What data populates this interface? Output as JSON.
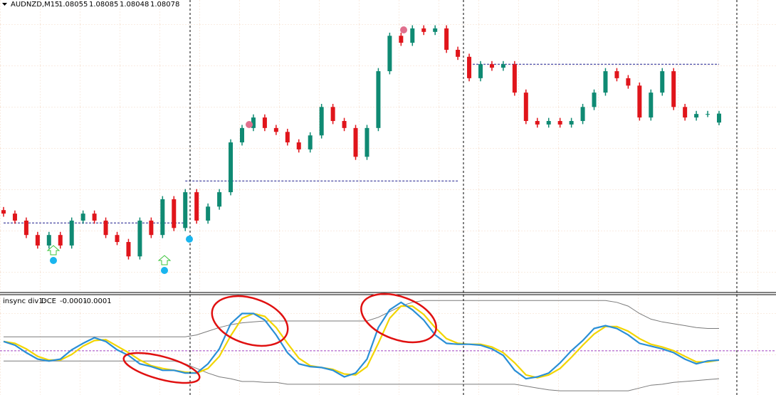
{
  "chart_data": [
    {
      "type": "candlestick",
      "title": "AUDNZD,M15",
      "open": [
        1.0783,
        1.07821,
        1.07803,
        1.07766,
        1.07739,
        1.07766,
        1.07739,
        1.07803,
        1.07821,
        1.07803,
        1.07766,
        1.07748,
        1.07711,
        1.07803,
        1.07766,
        1.07858,
        1.07784,
        1.07876,
        1.07803,
        1.07839,
        1.07876,
        1.08004,
        1.08041,
        1.08068,
        1.08041,
        1.08031,
        1.08004,
        1.07986,
        1.08022,
        1.08095,
        1.08059,
        1.08041,
        1.07967,
        1.08041,
        1.08187,
        1.08278,
        1.0826,
        1.08297,
        1.08288,
        1.08297,
        1.08242,
        1.08224,
        1.08169,
        1.08205,
        1.08196,
        1.08205,
        1.08132,
        1.08059,
        1.0805,
        1.08059,
        1.0805,
        1.08059,
        1.08095,
        1.08132,
        1.08187,
        1.08169,
        1.0815,
        1.08068,
        1.08132,
        1.08187,
        1.08095,
        1.08068,
        1.08077,
        1.08055
      ],
      "high": [
        1.07838,
        1.07829,
        1.07811,
        1.07774,
        1.07774,
        1.07774,
        1.07811,
        1.07829,
        1.07829,
        1.07811,
        1.07774,
        1.07756,
        1.07811,
        1.07811,
        1.07866,
        1.07866,
        1.07884,
        1.07884,
        1.07847,
        1.07884,
        1.08012,
        1.08049,
        1.08076,
        1.08076,
        1.08049,
        1.08039,
        1.08012,
        1.0803,
        1.08103,
        1.08103,
        1.08067,
        1.08049,
        1.08049,
        1.08195,
        1.08286,
        1.08286,
        1.08305,
        1.08305,
        1.08305,
        1.08305,
        1.0825,
        1.08232,
        1.08213,
        1.08213,
        1.08213,
        1.08213,
        1.0814,
        1.08067,
        1.08067,
        1.08067,
        1.08067,
        1.08103,
        1.0814,
        1.08195,
        1.08195,
        1.08177,
        1.08158,
        1.0814,
        1.08195,
        1.08195,
        1.08103,
        1.08085,
        1.08085,
        1.08085
      ],
      "low": [
        1.07813,
        1.07795,
        1.07758,
        1.07731,
        1.07731,
        1.07731,
        1.07731,
        1.07795,
        1.07795,
        1.07758,
        1.0774,
        1.07703,
        1.07703,
        1.07758,
        1.07758,
        1.07776,
        1.07776,
        1.07795,
        1.07795,
        1.07831,
        1.07868,
        1.07996,
        1.08033,
        1.08033,
        1.08023,
        1.07996,
        1.07978,
        1.07978,
        1.08014,
        1.08051,
        1.08033,
        1.07959,
        1.07959,
        1.08033,
        1.08179,
        1.08252,
        1.08252,
        1.0828,
        1.0828,
        1.08234,
        1.08216,
        1.08161,
        1.08161,
        1.08188,
        1.08188,
        1.08124,
        1.08051,
        1.08042,
        1.08042,
        1.08042,
        1.08042,
        1.08051,
        1.08087,
        1.08124,
        1.08161,
        1.08142,
        1.0806,
        1.0806,
        1.08124,
        1.08087,
        1.0806,
        1.0806,
        1.08069,
        1.08048
      ],
      "close": [
        1.07821,
        1.07803,
        1.07766,
        1.07739,
        1.07766,
        1.07739,
        1.07803,
        1.07821,
        1.07803,
        1.07766,
        1.07748,
        1.07711,
        1.07803,
        1.07766,
        1.07858,
        1.07784,
        1.07876,
        1.07803,
        1.07839,
        1.07876,
        1.08004,
        1.08041,
        1.08068,
        1.08041,
        1.08031,
        1.08004,
        1.07986,
        1.08022,
        1.08095,
        1.08059,
        1.08041,
        1.07967,
        1.08041,
        1.08187,
        1.08278,
        1.0826,
        1.08297,
        1.08288,
        1.08297,
        1.08242,
        1.08224,
        1.08169,
        1.08205,
        1.08196,
        1.08205,
        1.08132,
        1.08059,
        1.0805,
        1.08059,
        1.0805,
        1.08059,
        1.08095,
        1.08132,
        1.08187,
        1.08169,
        1.0815,
        1.08068,
        1.08132,
        1.08187,
        1.08095,
        1.08068,
        1.08077,
        1.08077,
        1.08078
      ],
      "up_color": "#0f8a73",
      "down_color": "#e0151b",
      "ylim": [
        1.0762,
        1.0837
      ],
      "levels": [
        {
          "value": 1.07797,
          "start": 0,
          "end": 16
        },
        {
          "value": 1.07905,
          "start": 16,
          "end": 40
        },
        {
          "value": 1.08205,
          "start": 41,
          "end": 63
        }
      ],
      "level_color": "#1a1a8c"
    },
    {
      "type": "line",
      "title": "insync div1:",
      "subtitle": "DCE",
      "series": [
        {
          "name": "DCE",
          "color": "#f2d500",
          "values": [
            0.0001,
            8e-05,
            2e-05,
            -6e-05,
            -0.0001,
            -0.0001,
            -4e-05,
            5e-05,
            0.00011,
            0.00012,
            5e-05,
            -2e-05,
            -0.0001,
            -0.00016,
            -0.00019,
            -0.00021,
            -0.00023,
            -0.00024,
            -0.00019,
            -6e-05,
            0.00016,
            0.00035,
            0.0004,
            0.00037,
            0.00025,
            8e-05,
            -8e-05,
            -0.00016,
            -0.00018,
            -0.0002,
            -0.00025,
            -0.00026,
            -0.00017,
            8e-05,
            0.00035,
            0.00048,
            0.00048,
            0.00039,
            0.00025,
            0.00013,
            8e-05,
            7e-05,
            7e-05,
            4e-05,
            -2e-05,
            -0.00013,
            -0.00026,
            -0.00029,
            -0.00026,
            -0.00019,
            -7e-05,
            6e-05,
            0.00018,
            0.00026,
            0.00026,
            0.00021,
            0.00013,
            7e-05,
            4e-05,
            0,
            -6e-05,
            -0.00012,
            -0.00012,
            -0.0001
          ]
        },
        {
          "color": "#2a8fd6",
          "values": [
            0.0001,
            6e-05,
            -2e-05,
            -9e-05,
            -0.00011,
            -9e-05,
            1e-05,
            8e-05,
            0.00014,
            0.0001,
            1e-05,
            -5e-05,
            -0.00014,
            -0.00017,
            -0.00021,
            -0.00021,
            -0.00024,
            -0.00024,
            -0.00014,
            2e-05,
            0.00029,
            0.0004,
            0.0004,
            0.00033,
            0.00017,
            -2e-05,
            -0.00014,
            -0.00017,
            -0.00018,
            -0.00021,
            -0.00028,
            -0.00024,
            -9e-05,
            0.00025,
            0.00044,
            0.00052,
            0.00044,
            0.00033,
            0.00017,
            8e-05,
            7e-05,
            7e-05,
            6e-05,
            2e-05,
            -5e-05,
            -0.00021,
            -0.0003,
            -0.00028,
            -0.00024,
            -0.00013,
            0,
            0.00011,
            0.00024,
            0.00027,
            0.00024,
            0.00017,
            8e-05,
            5e-05,
            2e-05,
            -2e-05,
            -9e-05,
            -0.00014,
            -0.00011,
            -0.0001
          ]
        },
        {
          "color": "#7a7a7a",
          "values": [
            0.00015,
            0.00015,
            0.00015,
            0.00015,
            0.00015,
            0.00015,
            0.00015,
            0.00015,
            0.00015,
            0.00015,
            0.00015,
            0.00015,
            0.00015,
            0.00015,
            0.00015,
            0.00015,
            0.00015,
            0.00017,
            0.00021,
            0.00025,
            0.00028,
            0.0003,
            0.00031,
            0.00032,
            0.00032,
            0.00032,
            0.00032,
            0.00032,
            0.00032,
            0.00032,
            0.00032,
            0.00032,
            0.00032,
            0.00036,
            0.00042,
            0.00048,
            0.00052,
            0.00054,
            0.00054,
            0.00054,
            0.00054,
            0.00054,
            0.00054,
            0.00054,
            0.00054,
            0.00054,
            0.00054,
            0.00054,
            0.00054,
            0.00054,
            0.00054,
            0.00054,
            0.00054,
            0.00054,
            0.00052,
            0.00048,
            0.0004,
            0.00034,
            0.00031,
            0.00029,
            0.00027,
            0.00025,
            0.00024,
            0.00024
          ]
        },
        {
          "color": "#7a7a7a",
          "values": [
            -0.00011,
            -0.00011,
            -0.00011,
            -0.00011,
            -0.00011,
            -0.00011,
            -0.00011,
            -0.00011,
            -0.00011,
            -0.00011,
            -0.00011,
            -0.00011,
            -0.00011,
            -0.00011,
            -0.00011,
            -0.00011,
            -0.00014,
            -0.00019,
            -0.00024,
            -0.00028,
            -0.0003,
            -0.00033,
            -0.00033,
            -0.00034,
            -0.00034,
            -0.00036,
            -0.00036,
            -0.00036,
            -0.00036,
            -0.00036,
            -0.00036,
            -0.00036,
            -0.00036,
            -0.00036,
            -0.00036,
            -0.00036,
            -0.00036,
            -0.00036,
            -0.00036,
            -0.00036,
            -0.00036,
            -0.00036,
            -0.00036,
            -0.00036,
            -0.00036,
            -0.00036,
            -0.00038,
            -0.0004,
            -0.00042,
            -0.00043,
            -0.00043,
            -0.00043,
            -0.00043,
            -0.00043,
            -0.00043,
            -0.00043,
            -0.0004,
            -0.00037,
            -0.00036,
            -0.00034,
            -0.00033,
            -0.00032,
            -0.00031,
            -0.0003
          ]
        }
      ],
      "ylim": [
        -0.00046,
        0.00058
      ],
      "hline": 0,
      "hline_color": "#a040c0"
    }
  ]
}
